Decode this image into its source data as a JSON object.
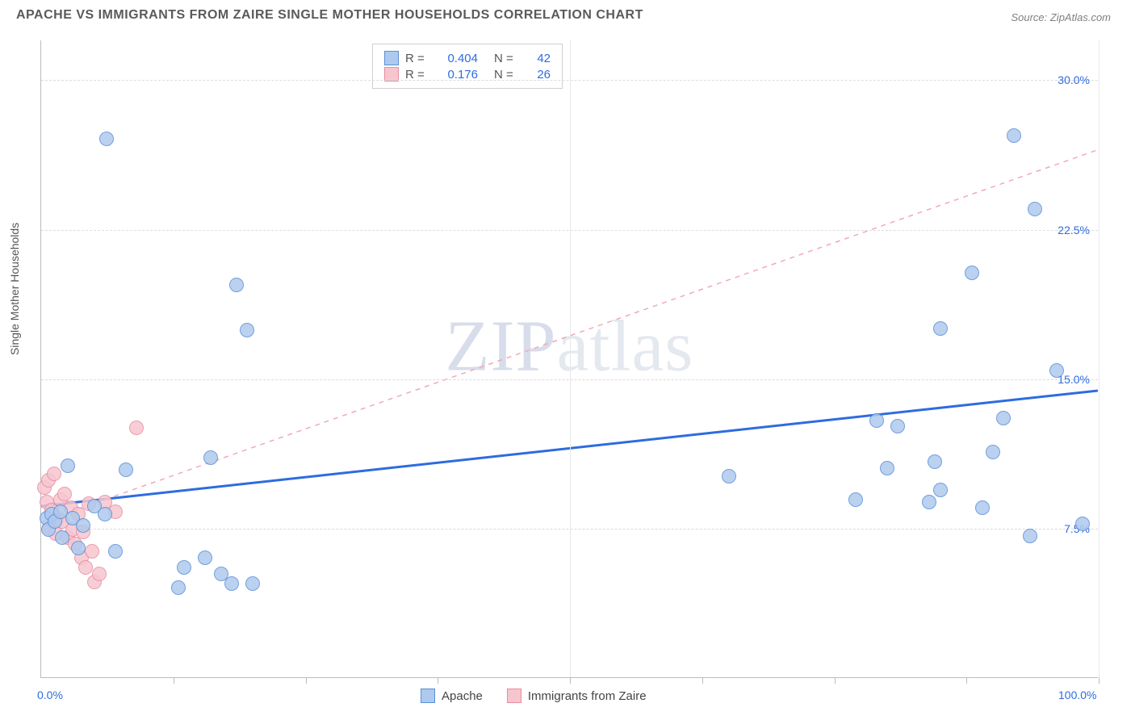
{
  "title": "APACHE VS IMMIGRANTS FROM ZAIRE SINGLE MOTHER HOUSEHOLDS CORRELATION CHART",
  "source": "Source: ZipAtlas.com",
  "ylabel": "Single Mother Households",
  "watermark_a": "ZIP",
  "watermark_b": "atlas",
  "chart": {
    "type": "scatter",
    "xlim": [
      0,
      100
    ],
    "ylim": [
      0,
      32
    ],
    "x_ticks_minor": [
      12.5,
      25,
      37.5,
      50,
      62.5,
      75,
      87.5,
      100
    ],
    "x_ticks_major_lines": [
      50,
      100
    ],
    "x_tick_labels": [
      {
        "x": 0,
        "label": "0.0%"
      },
      {
        "x": 100,
        "label": "100.0%"
      }
    ],
    "y_gridlines": [
      7.5,
      15.0,
      22.5,
      30.0
    ],
    "y_tick_labels": [
      {
        "y": 7.5,
        "label": "7.5%"
      },
      {
        "y": 15.0,
        "label": "15.0%"
      },
      {
        "y": 22.5,
        "label": "22.5%"
      },
      {
        "y": 30.0,
        "label": "30.0%"
      }
    ],
    "marker_radius": 9,
    "background_color": "#ffffff",
    "grid_color": "#dcdcdc",
    "series": [
      {
        "name": "Apache",
        "fill": "#aec9ee",
        "stroke": "#5b8fd6",
        "r_value": "0.404",
        "n_value": "42",
        "trend": {
          "x1": 0,
          "y1": 8.6,
          "x2": 100,
          "y2": 14.4,
          "dash": false,
          "stroke": "#2d6cdf",
          "width": 3
        },
        "points": [
          [
            0.5,
            8.0
          ],
          [
            0.7,
            7.4
          ],
          [
            1.0,
            8.2
          ],
          [
            1.3,
            7.8
          ],
          [
            1.8,
            8.3
          ],
          [
            2.0,
            7.0
          ],
          [
            2.5,
            10.6
          ],
          [
            3.0,
            8.0
          ],
          [
            3.5,
            6.5
          ],
          [
            4.0,
            7.6
          ],
          [
            5.0,
            8.6
          ],
          [
            6.0,
            8.2
          ],
          [
            6.2,
            27.0
          ],
          [
            7.0,
            6.3
          ],
          [
            8.0,
            10.4
          ],
          [
            13.0,
            4.5
          ],
          [
            13.5,
            5.5
          ],
          [
            15.5,
            6.0
          ],
          [
            16.0,
            11.0
          ],
          [
            17.0,
            5.2
          ],
          [
            18.0,
            4.7
          ],
          [
            18.5,
            19.7
          ],
          [
            19.5,
            17.4
          ],
          [
            20.0,
            4.7
          ],
          [
            65.0,
            10.1
          ],
          [
            77.0,
            8.9
          ],
          [
            79.0,
            12.9
          ],
          [
            80.0,
            10.5
          ],
          [
            81.0,
            12.6
          ],
          [
            84.0,
            8.8
          ],
          [
            84.5,
            10.8
          ],
          [
            85.0,
            17.5
          ],
          [
            85.0,
            9.4
          ],
          [
            88.0,
            20.3
          ],
          [
            89.0,
            8.5
          ],
          [
            90.0,
            11.3
          ],
          [
            91.0,
            13.0
          ],
          [
            92.0,
            27.2
          ],
          [
            93.5,
            7.1
          ],
          [
            94.0,
            23.5
          ],
          [
            96.0,
            15.4
          ],
          [
            98.5,
            7.7
          ]
        ]
      },
      {
        "name": "Immigrants from Zaire",
        "fill": "#f6c6cf",
        "stroke": "#e98ca0",
        "r_value": "0.176",
        "n_value": "26",
        "trend": {
          "x1": 0,
          "y1": 7.8,
          "x2": 100,
          "y2": 26.5,
          "dash": true,
          "stroke": "#f2a9b4",
          "width": 1.5
        },
        "points": [
          [
            0.3,
            9.5
          ],
          [
            0.5,
            8.8
          ],
          [
            0.7,
            9.9
          ],
          [
            0.8,
            7.5
          ],
          [
            1.0,
            8.4
          ],
          [
            1.2,
            10.2
          ],
          [
            1.4,
            7.2
          ],
          [
            1.5,
            8.0
          ],
          [
            1.8,
            8.9
          ],
          [
            2.0,
            7.8
          ],
          [
            2.2,
            9.2
          ],
          [
            2.5,
            7.0
          ],
          [
            2.8,
            8.5
          ],
          [
            3.0,
            7.4
          ],
          [
            3.2,
            6.7
          ],
          [
            3.5,
            8.2
          ],
          [
            3.8,
            6.0
          ],
          [
            4.0,
            7.3
          ],
          [
            4.2,
            5.5
          ],
          [
            4.5,
            8.7
          ],
          [
            4.8,
            6.3
          ],
          [
            5.0,
            4.8
          ],
          [
            5.5,
            5.2
          ],
          [
            6.0,
            8.8
          ],
          [
            7.0,
            8.3
          ],
          [
            9.0,
            12.5
          ]
        ]
      }
    ]
  },
  "legend_bottom": [
    {
      "label": "Apache",
      "swatch": "sw-blue"
    },
    {
      "label": "Immigrants from Zaire",
      "swatch": "sw-pink"
    }
  ]
}
